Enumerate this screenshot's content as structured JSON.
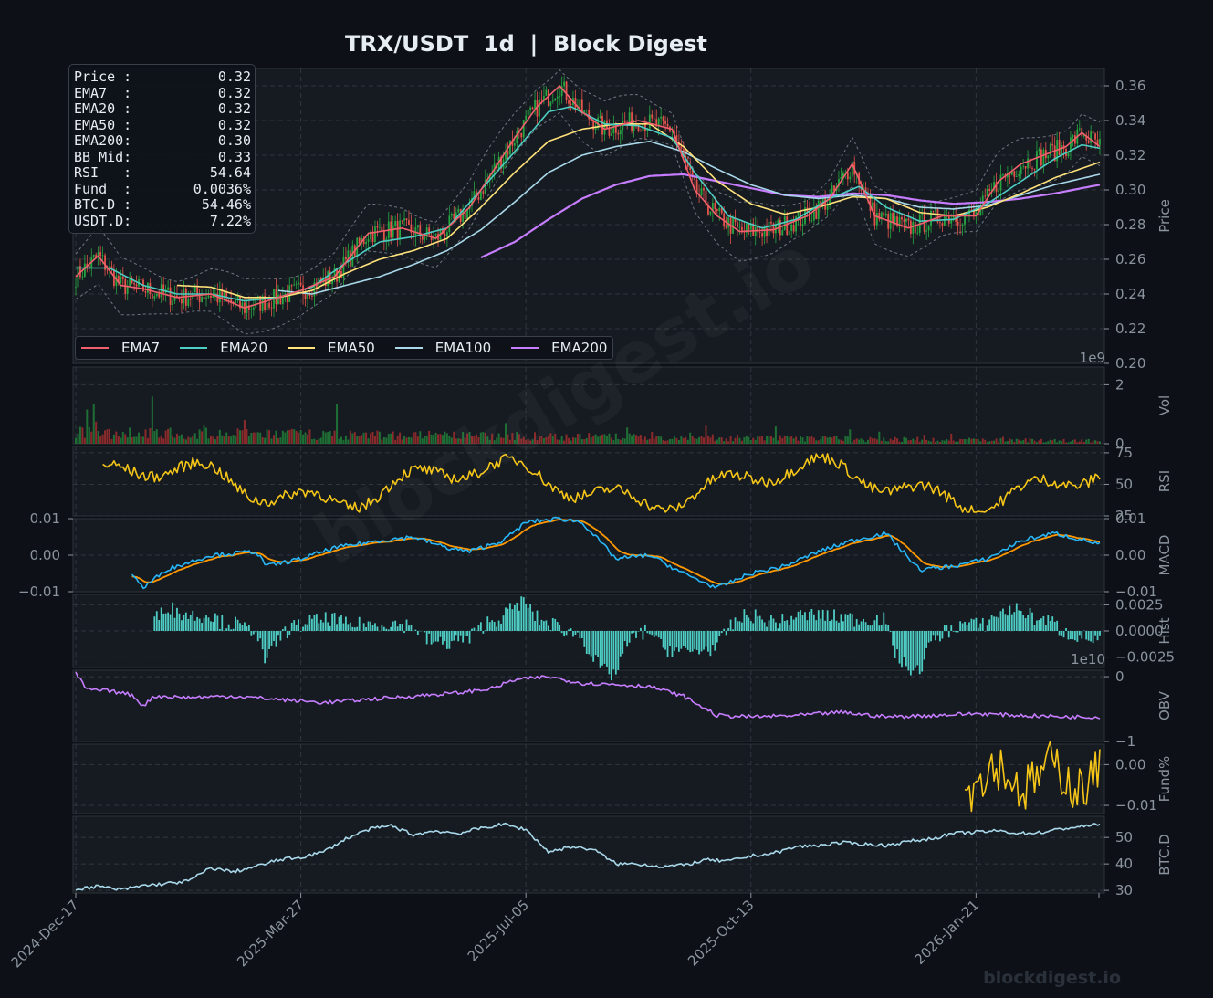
{
  "title": "TRX/USDT  1d  |  Block Digest",
  "watermark": "blockdigest.io",
  "info_box": [
    {
      "label": "Price :",
      "value": "0.32"
    },
    {
      "label": "EMA7  :",
      "value": "0.32"
    },
    {
      "label": "EMA20 :",
      "value": "0.32"
    },
    {
      "label": "EMA50 :",
      "value": "0.32"
    },
    {
      "label": "EMA200:",
      "value": "0.30"
    },
    {
      "label": "BB Mid:",
      "value": "0.33"
    },
    {
      "label": "RSI   :",
      "value": "54.64"
    },
    {
      "label": "Fund  :",
      "value": "0.0036%"
    },
    {
      "label": "BTC.D :",
      "value": "54.46%"
    },
    {
      "label": "USDT.D:",
      "value": "7.22%"
    }
  ],
  "legend": [
    {
      "name": "EMA7",
      "color": "#f0616d"
    },
    {
      "name": "EMA20",
      "color": "#4ecdc4"
    },
    {
      "name": "EMA50",
      "color": "#ffe27a"
    },
    {
      "name": "EMA100",
      "color": "#a8d8ea"
    },
    {
      "name": "EMA200",
      "color": "#c77dff"
    }
  ],
  "colors": {
    "background": "#0d1117",
    "panel": "#161b22",
    "grid": "#30363d",
    "text": "#8b949e",
    "up": "#26a641",
    "down": "#e5534b",
    "rsi": "#f5c518",
    "macd": "#29b6f6",
    "signal": "#ff9800",
    "hist": "#4ecdc4",
    "obv": "#c77dff",
    "funding": "#f5c518",
    "btcd": "#a8d8ea"
  },
  "chart_data": [
    {
      "panel": "price",
      "type": "line",
      "ylabel": "Price",
      "ylim": [
        0.2,
        0.37
      ],
      "yticks": [
        "0.20",
        "0.22",
        "0.24",
        "0.26",
        "0.28",
        "0.30",
        "0.32",
        "0.34",
        "0.36"
      ],
      "x_tick_labels": [
        "2024-Dec-17",
        "2025-Mar-27",
        "2025-Jul-05",
        "2025-Oct-13",
        "2026-Jan-21"
      ],
      "series_points": {
        "EMA7": [
          [
            0,
            0.25
          ],
          [
            10,
            0.262
          ],
          [
            20,
            0.245
          ],
          [
            30,
            0.243
          ],
          [
            45,
            0.238
          ],
          [
            60,
            0.24
          ],
          [
            75,
            0.232
          ],
          [
            85,
            0.236
          ],
          [
            100,
            0.242
          ],
          [
            115,
            0.25
          ],
          [
            130,
            0.275
          ],
          [
            145,
            0.278
          ],
          [
            160,
            0.272
          ],
          [
            175,
            0.29
          ],
          [
            185,
            0.31
          ],
          [
            195,
            0.33
          ],
          [
            205,
            0.348
          ],
          [
            215,
            0.36
          ],
          [
            225,
            0.345
          ],
          [
            235,
            0.335
          ],
          [
            250,
            0.34
          ],
          [
            265,
            0.335
          ],
          [
            275,
            0.3
          ],
          [
            285,
            0.285
          ],
          [
            295,
            0.276
          ],
          [
            310,
            0.277
          ],
          [
            325,
            0.285
          ],
          [
            335,
            0.295
          ],
          [
            345,
            0.315
          ],
          [
            355,
            0.285
          ],
          [
            370,
            0.278
          ],
          [
            385,
            0.285
          ],
          [
            400,
            0.285
          ],
          [
            410,
            0.305
          ],
          [
            420,
            0.315
          ],
          [
            430,
            0.32
          ],
          [
            440,
            0.325
          ],
          [
            447,
            0.333
          ],
          [
            455,
            0.325
          ]
        ],
        "EMA20": [
          [
            0,
            0.255
          ],
          [
            15,
            0.255
          ],
          [
            30,
            0.245
          ],
          [
            45,
            0.24
          ],
          [
            60,
            0.24
          ],
          [
            75,
            0.236
          ],
          [
            90,
            0.238
          ],
          [
            105,
            0.244
          ],
          [
            120,
            0.258
          ],
          [
            135,
            0.27
          ],
          [
            150,
            0.273
          ],
          [
            165,
            0.278
          ],
          [
            180,
            0.3
          ],
          [
            195,
            0.322
          ],
          [
            210,
            0.345
          ],
          [
            220,
            0.348
          ],
          [
            235,
            0.338
          ],
          [
            250,
            0.337
          ],
          [
            265,
            0.33
          ],
          [
            275,
            0.31
          ],
          [
            290,
            0.285
          ],
          [
            305,
            0.278
          ],
          [
            320,
            0.283
          ],
          [
            335,
            0.295
          ],
          [
            348,
            0.302
          ],
          [
            360,
            0.29
          ],
          [
            375,
            0.282
          ],
          [
            390,
            0.283
          ],
          [
            405,
            0.292
          ],
          [
            420,
            0.305
          ],
          [
            435,
            0.318
          ],
          [
            447,
            0.326
          ],
          [
            455,
            0.324
          ]
        ],
        "EMA50": [
          [
            45,
            0.245
          ],
          [
            60,
            0.244
          ],
          [
            75,
            0.238
          ],
          [
            90,
            0.238
          ],
          [
            105,
            0.242
          ],
          [
            120,
            0.252
          ],
          [
            135,
            0.26
          ],
          [
            150,
            0.265
          ],
          [
            165,
            0.272
          ],
          [
            180,
            0.29
          ],
          [
            195,
            0.31
          ],
          [
            210,
            0.328
          ],
          [
            225,
            0.335
          ],
          [
            240,
            0.338
          ],
          [
            255,
            0.338
          ],
          [
            270,
            0.325
          ],
          [
            285,
            0.305
          ],
          [
            300,
            0.292
          ],
          [
            315,
            0.286
          ],
          [
            330,
            0.29
          ],
          [
            345,
            0.296
          ],
          [
            360,
            0.295
          ],
          [
            375,
            0.287
          ],
          [
            390,
            0.285
          ],
          [
            405,
            0.29
          ],
          [
            420,
            0.298
          ],
          [
            435,
            0.307
          ],
          [
            455,
            0.316
          ]
        ],
        "EMA100": [
          [
            90,
            0.242
          ],
          [
            105,
            0.24
          ],
          [
            120,
            0.245
          ],
          [
            135,
            0.25
          ],
          [
            150,
            0.257
          ],
          [
            165,
            0.265
          ],
          [
            180,
            0.277
          ],
          [
            195,
            0.293
          ],
          [
            210,
            0.31
          ],
          [
            225,
            0.32
          ],
          [
            240,
            0.325
          ],
          [
            255,
            0.328
          ],
          [
            270,
            0.322
          ],
          [
            285,
            0.312
          ],
          [
            300,
            0.303
          ],
          [
            315,
            0.297
          ],
          [
            330,
            0.295
          ],
          [
            345,
            0.297
          ],
          [
            360,
            0.295
          ],
          [
            375,
            0.29
          ],
          [
            390,
            0.289
          ],
          [
            405,
            0.291
          ],
          [
            420,
            0.297
          ],
          [
            435,
            0.303
          ],
          [
            455,
            0.309
          ]
        ],
        "EMA200": [
          [
            180,
            0.261
          ],
          [
            195,
            0.27
          ],
          [
            210,
            0.283
          ],
          [
            225,
            0.295
          ],
          [
            240,
            0.303
          ],
          [
            255,
            0.308
          ],
          [
            270,
            0.309
          ],
          [
            285,
            0.305
          ],
          [
            300,
            0.301
          ],
          [
            315,
            0.297
          ],
          [
            330,
            0.296
          ],
          [
            345,
            0.298
          ],
          [
            360,
            0.297
          ],
          [
            375,
            0.294
          ],
          [
            390,
            0.292
          ],
          [
            405,
            0.293
          ],
          [
            420,
            0.295
          ],
          [
            435,
            0.298
          ],
          [
            455,
            0.303
          ]
        ]
      }
    },
    {
      "panel": "volume",
      "type": "bar",
      "ylabel": "Vol",
      "ylim": [
        0,
        2.6
      ],
      "yticks": [
        "0",
        "2"
      ],
      "scale_label": "1e9"
    },
    {
      "panel": "rsi",
      "type": "line",
      "ylabel": "RSI",
      "ylim": [
        25,
        80
      ],
      "yticks": [
        "25",
        "50",
        "75"
      ]
    },
    {
      "panel": "macd",
      "type": "line",
      "ylabel": "MACD",
      "ylim": [
        -0.01,
        0.01
      ],
      "yticks": [
        "0.01",
        "0.00",
        "−0.01"
      ]
    },
    {
      "panel": "hist",
      "type": "bar",
      "ylabel": "Hist",
      "ylim": [
        -0.0035,
        0.0035
      ],
      "yticks": [
        "0.0025",
        "0.0000",
        "−0.0025"
      ]
    },
    {
      "panel": "obv",
      "type": "line",
      "ylabel": "OBV",
      "ylim": [
        -1,
        0.1
      ],
      "yticks": [
        "0",
        "−1"
      ],
      "scale_label": "1e10"
    },
    {
      "panel": "funding",
      "type": "line",
      "ylabel": "Fund%",
      "ylim": [
        -0.012,
        0.005
      ],
      "yticks": [
        "0.00",
        "−0.01"
      ]
    },
    {
      "panel": "btcd",
      "type": "line",
      "ylabel": "BTC.D",
      "ylim": [
        29,
        58
      ],
      "yticks": [
        "30",
        "40",
        "50"
      ],
      "x": [
        0,
        10,
        20,
        30,
        40,
        50,
        60,
        70,
        80,
        90,
        100,
        110,
        120,
        130,
        140,
        150,
        160,
        170,
        180,
        190,
        200,
        210,
        220,
        230,
        240,
        250,
        260,
        270,
        280,
        290,
        300,
        310,
        320,
        330,
        340,
        350,
        360,
        370,
        380,
        390,
        400,
        410,
        420,
        430,
        440,
        455
      ],
      "values": [
        30.5,
        31.5,
        30.2,
        31.8,
        32.5,
        33.5,
        38.5,
        37,
        39,
        41.5,
        42.5,
        44.5,
        49.5,
        53,
        54.5,
        51,
        52.5,
        51.5,
        53.5,
        55,
        53,
        44.5,
        46.5,
        45.5,
        40,
        40,
        39,
        39.5,
        41.5,
        41,
        43,
        44,
        46.5,
        47,
        48,
        47.5,
        47,
        48.5,
        49.5,
        51.5,
        52,
        52.5,
        51.5,
        52,
        53.5,
        55
      ]
    }
  ],
  "left_axis_macd_ticks": [
    "0.01",
    "0.00",
    "−0.01"
  ]
}
